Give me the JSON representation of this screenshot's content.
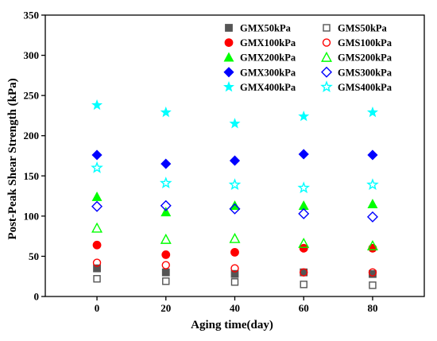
{
  "chart_data": {
    "type": "scatter",
    "title": "",
    "xlabel": "Aging time(day)",
    "ylabel": "Post-Peak Shear Strength (kPa)",
    "xlim": [
      -15,
      95
    ],
    "ylim": [
      0,
      350
    ],
    "xticks": [
      0,
      20,
      40,
      60,
      80
    ],
    "yticks": [
      0,
      50,
      100,
      150,
      200,
      250,
      300,
      350
    ],
    "grid": false,
    "legend_position": "top-right",
    "x": [
      0,
      20,
      40,
      60,
      80
    ],
    "series": [
      {
        "name": "GMX50kPa",
        "values": [
          35,
          30,
          28,
          30,
          28
        ],
        "color": "#555555",
        "marker": "square",
        "filled": true
      },
      {
        "name": "GMX100kPa",
        "values": [
          64,
          52,
          55,
          60,
          60
        ],
        "color": "#ff0000",
        "marker": "circle",
        "filled": true
      },
      {
        "name": "GMX200kPa",
        "values": [
          124,
          105,
          113,
          113,
          115
        ],
        "color": "#00ff00",
        "marker": "triangle",
        "filled": true
      },
      {
        "name": "GMX300kPa",
        "values": [
          176,
          165,
          169,
          177,
          176
        ],
        "color": "#0000ff",
        "marker": "diamond",
        "filled": true
      },
      {
        "name": "GMX400kPa",
        "values": [
          238,
          229,
          215,
          224,
          229
        ],
        "color": "#00ffff",
        "marker": "star",
        "filled": true
      },
      {
        "name": "GMS50kPa",
        "values": [
          22,
          19,
          18,
          15,
          14
        ],
        "color": "#555555",
        "marker": "square",
        "filled": false
      },
      {
        "name": "GMS100kPa",
        "values": [
          42,
          39,
          35,
          30,
          30
        ],
        "color": "#ff0000",
        "marker": "circle",
        "filled": false
      },
      {
        "name": "GMS200kPa",
        "values": [
          85,
          71,
          72,
          66,
          63
        ],
        "color": "#00ff00",
        "marker": "triangle",
        "filled": false
      },
      {
        "name": "GMS300kPa",
        "values": [
          112,
          113,
          109,
          103,
          99
        ],
        "color": "#0000ff",
        "marker": "diamond",
        "filled": false
      },
      {
        "name": "GMS400kPa",
        "values": [
          160,
          141,
          139,
          135,
          139
        ],
        "color": "#00ffff",
        "marker": "star",
        "filled": false
      }
    ]
  }
}
